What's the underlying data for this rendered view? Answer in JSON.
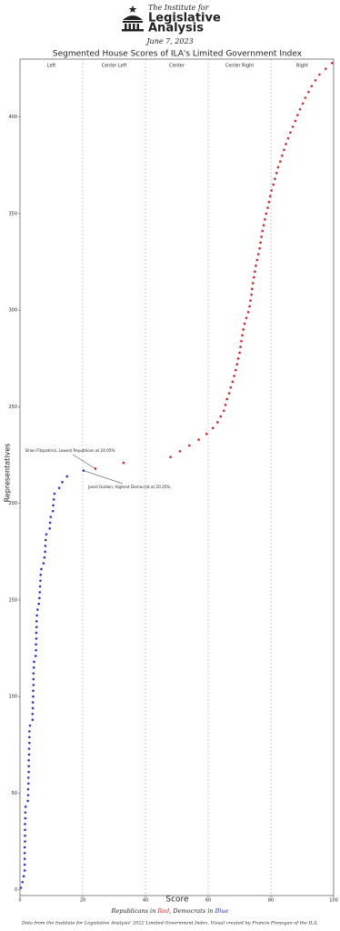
{
  "header": {
    "org_line1": "The Institute for",
    "org_line2": "Legislative",
    "org_line3": "Analysis",
    "date": "June 7, 2023"
  },
  "chart_data": {
    "type": "scatter",
    "title": "Segmented House Scores of ILA's Limited Government Index",
    "x_label": "Score",
    "y_label": "Representatives",
    "xlim": [
      0,
      100
    ],
    "xticks": [
      0,
      20,
      40,
      60,
      80,
      100
    ],
    "ylim": [
      -3,
      430
    ],
    "yticks": [
      0,
      50,
      100,
      150,
      200,
      250,
      300,
      350,
      400
    ],
    "segments": [
      "Left",
      "Center Left",
      "Center",
      "Center Right",
      "Right"
    ],
    "series": [
      {
        "name": "Republicans",
        "color": "#d62728",
        "x": [
          24.05,
          33,
          48,
          51,
          54,
          57,
          59.5,
          61.5,
          63,
          64,
          65,
          65.5,
          66,
          66.7,
          67.2,
          67.8,
          68.3,
          68.8,
          69.2,
          69.6,
          70,
          70.3,
          70.6,
          70.9,
          71.2,
          71.6,
          72.2,
          72.8,
          73.2,
          73.5,
          73.8,
          74,
          74.3,
          74.6,
          74.9,
          75.2,
          75.6,
          76,
          76.4,
          76.7,
          77,
          77.3,
          77.7,
          78.1,
          78.5,
          79,
          79.4,
          79.8,
          80.2,
          80.8,
          81.3,
          81.8,
          82.3,
          83,
          83.6,
          84.2,
          84.8,
          85.5,
          86.2,
          87,
          87.8,
          88.5,
          89.3,
          90.2,
          91,
          92,
          93,
          94.2,
          95.5,
          97.5,
          99.5
        ],
        "y": [
          218,
          221,
          224,
          227,
          230,
          233,
          236,
          239,
          242,
          245,
          248,
          251,
          254,
          257,
          260,
          263,
          266,
          269,
          272,
          275,
          278,
          281,
          284,
          287,
          290,
          293,
          296,
          299,
          302,
          305,
          308,
          311,
          314,
          317,
          320,
          323,
          326,
          329,
          332,
          335,
          338,
          341,
          344,
          347,
          350,
          353,
          356,
          359,
          362,
          365,
          368,
          371,
          374,
          377,
          380,
          383,
          386,
          389,
          392,
          395,
          398,
          401,
          404,
          407,
          410,
          413,
          416,
          419,
          422,
          425,
          428
        ]
      },
      {
        "name": "Democrats",
        "color": "#2637c9",
        "x": [
          0.3,
          0.8,
          1.2,
          1.5,
          1.5,
          1.5,
          1.5,
          1.5,
          1.6,
          1.6,
          1.6,
          1.6,
          1.7,
          1.7,
          1.8,
          2.5,
          2.6,
          2.6,
          2.7,
          2.7,
          2.8,
          2.8,
          2.8,
          2.9,
          2.9,
          3,
          3,
          3,
          3.2,
          4,
          4,
          4.1,
          4.1,
          4.2,
          4.2,
          4.3,
          4.3,
          4.3,
          4.4,
          4.5,
          5,
          5.1,
          5.1,
          5.2,
          5.2,
          5.3,
          5.3,
          5.4,
          5.6,
          6,
          6.2,
          6.3,
          6.4,
          6.5,
          6.6,
          6.8,
          7.5,
          7.8,
          8,
          8.1,
          8.2,
          8.4,
          9.5,
          9.6,
          9.8,
          10.5,
          10.6,
          10.8,
          11,
          12.5,
          13.5,
          15,
          20.25
        ],
        "y": [
          1,
          4,
          7,
          10,
          13,
          16,
          19,
          22,
          25,
          28,
          31,
          34,
          37,
          40,
          43,
          46,
          49,
          52,
          55,
          58,
          61,
          64,
          67,
          70,
          73,
          76,
          79,
          82,
          85,
          88,
          91,
          94,
          97,
          100,
          103,
          106,
          109,
          112,
          115,
          118,
          121,
          124,
          127,
          130,
          133,
          136,
          139,
          142,
          145,
          148,
          151,
          154,
          157,
          160,
          163,
          166,
          169,
          172,
          175,
          178,
          181,
          184,
          187,
          190,
          193,
          196,
          199,
          202,
          205,
          208,
          211,
          214,
          217
        ]
      }
    ],
    "annotations": [
      "Brian Fitzpatrick, Lowest Republican at 24.05%",
      "Jared Golden, Highest Democrat at 20.25%"
    ],
    "legend_note": [
      "Republicans in ",
      "Red",
      ", Democrats in ",
      "Blue"
    ],
    "source": "Data from the Institute for Legislative Analysis' 2022 Limited Government Index. Visual created by Francis Finnegan of the ILA."
  }
}
